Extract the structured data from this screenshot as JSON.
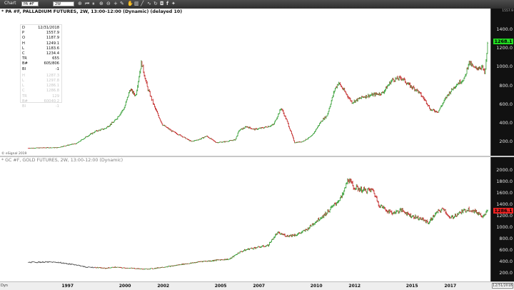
{
  "toolbar": {
    "title": "Chart",
    "symbol_value": "PA #F",
    "interval_value": "2W",
    "icons": [
      "crosshair-icon",
      "fast-backward-icon",
      "pause-icon",
      "zoom-in-icon",
      "zoom-out-icon",
      "plus-icon",
      "pencil-icon",
      "hand-icon",
      "bar-chart-icon",
      "line-icon",
      "indicator-icon",
      "refresh-icon",
      "camera-icon",
      "facebook-icon",
      "twitter-icon"
    ]
  },
  "pane1": {
    "title": "* PA #F, PALLADIUM FUTURES, 2W, 13:00-12:00 (Dynamic) (delayed 10)",
    "price_ticks": [
      "1400.0",
      "1200.0",
      "1000.0",
      "800.0",
      "600.0",
      "400.0",
      "200.0"
    ],
    "top_mini_label": "1557.9",
    "last_price": "1268.1",
    "last_price_color": "#22dd22",
    "attribution": "© eSignal 2019",
    "data_window": [
      {
        "k": "D",
        "v": "12/31/2018"
      },
      {
        "k": "P",
        "v": "1557.9"
      },
      {
        "k": "O",
        "v": "1187.9"
      },
      {
        "k": "H",
        "v": "1249.1"
      },
      {
        "k": "L",
        "v": "1183.6"
      },
      {
        "k": "C",
        "v": "1234.4"
      },
      {
        "k": "TR",
        "v": "655"
      },
      {
        "k": "B#",
        "v": "605/806"
      },
      {
        "k": "BI",
        "v": "-1"
      }
    ],
    "data_window_faint": [
      {
        "k": "H",
        "v": "1287.3"
      },
      {
        "k": "L",
        "v": "1297.8"
      },
      {
        "k": "L",
        "v": "1286.1"
      },
      {
        "k": "C",
        "v": "1286.8"
      },
      {
        "k": "TR",
        "v": "129"
      },
      {
        "k": "B#",
        "v": "60040.2"
      },
      {
        "k": "BI",
        "v": "-1"
      }
    ]
  },
  "pane2": {
    "title": "* GC #F, GOLD FUTURES, 2W, 13:00-12:00 (Dynamic)",
    "price_ticks": [
      "2000.0",
      "1800.0",
      "1600.0",
      "1400.0",
      "1200.0",
      "1000.0",
      "800.0",
      "600.0",
      "400.0",
      "200.0"
    ],
    "last_price": "1286.1",
    "last_price_color": "#ee2222"
  },
  "timeaxis": {
    "years": [
      "1997",
      "2000",
      "2002",
      "2005",
      "2007",
      "2010",
      "2012",
      "2015",
      "2017"
    ],
    "left_label": "Dyn",
    "date_box": "12/31/2018"
  },
  "colors": {
    "up": "#2e9b2e",
    "down": "#c02020",
    "neutral": "#555555"
  },
  "chart_data": [
    {
      "type": "line",
      "name": "PA #F",
      "x": [
        1995.0,
        1996.0,
        1996.5,
        1997.0,
        1997.5,
        1998.0,
        1998.5,
        1999.0,
        1999.5,
        2000.0,
        2000.3,
        2000.6,
        2000.9,
        2001.2,
        2001.6,
        2002.0,
        2002.5,
        2003.0,
        2003.5,
        2004.0,
        2004.3,
        2004.8,
        2005.3,
        2005.8,
        2006.0,
        2006.4,
        2006.8,
        2007.3,
        2007.8,
        2008.2,
        2008.5,
        2008.9,
        2009.3,
        2009.8,
        2010.3,
        2010.6,
        2011.0,
        2011.2,
        2011.6,
        2011.9,
        2012.5,
        2013.0,
        2013.5,
        2014.0,
        2014.5,
        2014.9,
        2015.3,
        2015.8,
        2016.0,
        2016.4,
        2016.9,
        2017.3,
        2017.8,
        2018.0,
        2018.3,
        2018.7,
        2018.85,
        2019.0
      ],
      "y": [
        130,
        135,
        135,
        160,
        180,
        250,
        310,
        340,
        420,
        560,
        760,
        690,
        1050,
        780,
        560,
        380,
        310,
        260,
        200,
        230,
        260,
        190,
        200,
        220,
        320,
        360,
        330,
        350,
        380,
        560,
        420,
        190,
        200,
        260,
        420,
        480,
        760,
        830,
        710,
        620,
        680,
        700,
        720,
        860,
        880,
        800,
        750,
        620,
        540,
        520,
        700,
        800,
        880,
        1050,
        980,
        1000,
        920,
        1268
      ]
    },
    {
      "type": "line",
      "name": "GC #F",
      "x": [
        1995.0,
        1996.0,
        1996.5,
        1997.0,
        1997.5,
        1998.0,
        1998.5,
        1999.0,
        1999.5,
        2000.0,
        2000.5,
        2001.0,
        2001.5,
        2002.0,
        2002.5,
        2003.0,
        2003.5,
        2004.0,
        2004.5,
        2005.0,
        2005.5,
        2006.0,
        2006.5,
        2007.0,
        2007.5,
        2008.0,
        2008.5,
        2009.0,
        2009.5,
        2010.0,
        2010.5,
        2011.0,
        2011.4,
        2011.7,
        2012.0,
        2012.5,
        2013.0,
        2013.3,
        2013.7,
        2014.0,
        2014.5,
        2015.0,
        2015.5,
        2015.9,
        2016.3,
        2016.7,
        2017.0,
        2017.5,
        2018.0,
        2018.5,
        2018.7,
        2019.0
      ],
      "y": [
        385,
        390,
        385,
        360,
        340,
        300,
        295,
        280,
        300,
        285,
        280,
        265,
        275,
        300,
        320,
        350,
        370,
        400,
        410,
        430,
        440,
        560,
        620,
        650,
        680,
        900,
        850,
        870,
        950,
        1100,
        1230,
        1400,
        1550,
        1850,
        1700,
        1650,
        1650,
        1400,
        1300,
        1250,
        1300,
        1200,
        1150,
        1080,
        1250,
        1330,
        1150,
        1250,
        1320,
        1250,
        1200,
        1286
      ]
    }
  ]
}
